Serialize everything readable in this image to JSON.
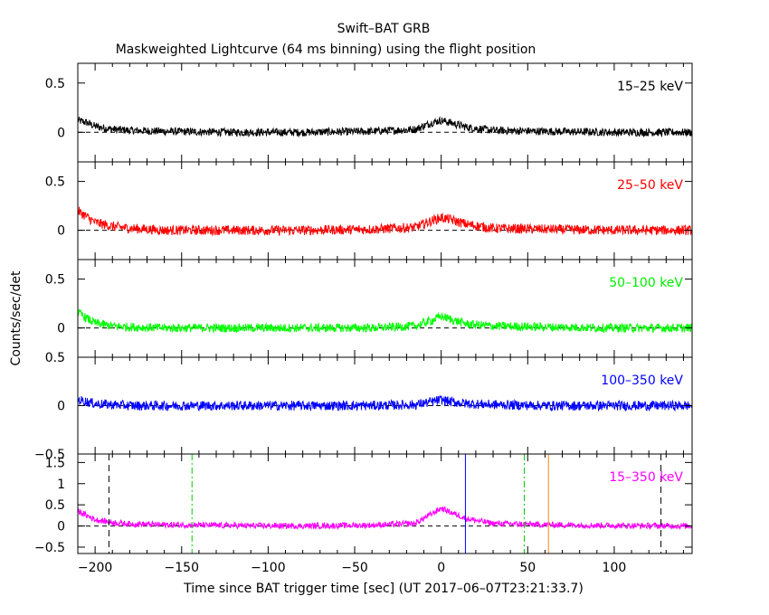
{
  "chart_data": {
    "type": "line",
    "title": "Swift–BAT GRB",
    "subtitle": "Maskweighted Lightcurve (64 ms binning) using the flight position",
    "xlabel": "Time since BAT trigger time [sec] (UT 2017–06–07T23:21:33.7)",
    "ylabel": "Counts/sec/det",
    "xlim": [
      -210,
      145
    ],
    "x_ticks": [
      -200,
      -150,
      -100,
      -50,
      0,
      50,
      100
    ],
    "x_tick_labels": [
      "−200",
      "−150",
      "−100",
      "−50",
      "0",
      "50",
      "100"
    ],
    "grid": false,
    "panels": [
      {
        "band": "15–25 keV",
        "color": "#000000",
        "ylim": [
          -0.3,
          0.7
        ],
        "y_ticks": [
          0,
          0.5
        ],
        "y_tick_labels": [
          "0",
          "0.5"
        ],
        "series": [
          {
            "x": [
              -210,
              -205,
              -200,
              -190,
              -180,
              -160,
              -120,
              -80,
              -40,
              -15,
              -5,
              0,
              5,
              15,
              30,
              60,
              100,
              145
            ],
            "y": [
              0.12,
              0.1,
              0.06,
              0.03,
              0.02,
              0.01,
              0.0,
              0.0,
              0.01,
              0.03,
              0.1,
              0.12,
              0.1,
              0.05,
              0.02,
              0.01,
              0.0,
              0.0
            ]
          }
        ],
        "noise": 0.04
      },
      {
        "band": "25–50 keV",
        "color": "#ff0000",
        "ylim": [
          -0.3,
          0.7
        ],
        "y_ticks": [
          0,
          0.5
        ],
        "y_tick_labels": [
          "0",
          "0.5"
        ],
        "series": [
          {
            "x": [
              -210,
              -205,
              -200,
              -190,
              -180,
              -160,
              -120,
              -80,
              -40,
              -15,
              -5,
              0,
              5,
              15,
              30,
              60,
              100,
              145
            ],
            "y": [
              0.2,
              0.14,
              0.08,
              0.04,
              0.02,
              0.0,
              0.0,
              0.0,
              0.01,
              0.03,
              0.1,
              0.13,
              0.11,
              0.06,
              0.02,
              0.01,
              0.0,
              0.0
            ]
          }
        ],
        "noise": 0.05
      },
      {
        "band": "50–100 keV",
        "color": "#00ff00",
        "ylim": [
          -0.3,
          0.7
        ],
        "y_ticks": [
          0,
          0.5
        ],
        "y_tick_labels": [
          "0",
          "0.5"
        ],
        "series": [
          {
            "x": [
              -210,
              -205,
              -200,
              -190,
              -180,
              -160,
              -120,
              -80,
              -40,
              -15,
              -5,
              0,
              5,
              15,
              30,
              60,
              100,
              145
            ],
            "y": [
              0.16,
              0.1,
              0.05,
              0.02,
              0.01,
              0.0,
              0.0,
              0.0,
              0.0,
              0.02,
              0.08,
              0.12,
              0.09,
              0.04,
              0.02,
              0.01,
              0.0,
              0.0
            ]
          }
        ],
        "noise": 0.045
      },
      {
        "band": "100–350 keV",
        "color": "#0000ff",
        "ylim": [
          -0.5,
          0.5
        ],
        "y_ticks": [
          -0.5,
          0,
          0.5
        ],
        "y_tick_labels": [
          "−0.5",
          "0",
          "0.5"
        ],
        "series": [
          {
            "x": [
              -210,
              -205,
              -200,
              -190,
              -180,
              -160,
              -120,
              -80,
              -40,
              -15,
              -5,
              0,
              5,
              15,
              30,
              60,
              100,
              145
            ],
            "y": [
              0.06,
              0.04,
              0.02,
              0.01,
              0.0,
              0.0,
              0.0,
              0.0,
              0.0,
              0.01,
              0.04,
              0.06,
              0.04,
              0.02,
              0.01,
              0.0,
              0.0,
              0.0
            ]
          }
        ],
        "noise": 0.05
      },
      {
        "band": "15–350 keV",
        "color": "#ff00ff",
        "ylim": [
          -0.65,
          1.7
        ],
        "y_ticks": [
          -0.5,
          0,
          0.5,
          1,
          1.5
        ],
        "y_tick_labels": [
          "−0.5",
          "0",
          "0.5",
          "1",
          "1.5"
        ],
        "series": [
          {
            "x": [
              -210,
              -205,
              -200,
              -190,
              -180,
              -160,
              -120,
              -80,
              -40,
              -15,
              -5,
              0,
              5,
              15,
              30,
              60,
              100,
              145
            ],
            "y": [
              0.35,
              0.25,
              0.15,
              0.08,
              0.05,
              0.03,
              0.01,
              0.0,
              0.02,
              0.06,
              0.3,
              0.42,
              0.33,
              0.17,
              0.06,
              0.03,
              0.01,
              0.0
            ]
          }
        ],
        "noise": 0.07,
        "vlines": [
          {
            "x": -192,
            "color": "#000000",
            "style": "dashed"
          },
          {
            "x": -144,
            "color": "#00cc00",
            "style": "dashdot"
          },
          {
            "x": 14,
            "color": "#0000ff",
            "style": "solid"
          },
          {
            "x": 48,
            "color": "#00cc00",
            "style": "dashdot"
          },
          {
            "x": 62,
            "color": "#ff8800",
            "style": "solid"
          },
          {
            "x": 127,
            "color": "#000000",
            "style": "dashed"
          }
        ]
      }
    ]
  }
}
